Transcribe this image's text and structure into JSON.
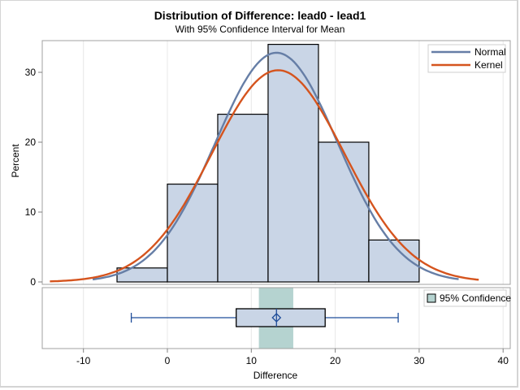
{
  "chart_data": {
    "type": "bar",
    "title": "Distribution of Difference: lead0 - lead1",
    "subtitle": "With 95% Confidence Interval for Mean",
    "xlabel": "Difference",
    "ylabel": "Percent",
    "xlim": [
      -15,
      41
    ],
    "ylim": [
      0,
      35.5
    ],
    "xticks": [
      -10,
      0,
      10,
      20,
      30,
      40
    ],
    "yticks": [
      0,
      10,
      20,
      30
    ],
    "grid": "vertical",
    "histogram": {
      "bins": [
        {
          "lo": -6,
          "hi": 0,
          "value": 2
        },
        {
          "lo": 0,
          "hi": 6,
          "value": 14
        },
        {
          "lo": 6,
          "hi": 12,
          "value": 24
        },
        {
          "lo": 12,
          "hi": 18,
          "value": 34
        },
        {
          "lo": 18,
          "hi": 24,
          "value": 20
        },
        {
          "lo": 24,
          "hi": 30,
          "value": 6
        }
      ]
    },
    "series": [
      {
        "name": "Normal",
        "color": "#667ea6",
        "mean": 13,
        "peak": 32.8,
        "range": [
          -8.9,
          34.7
        ]
      },
      {
        "name": "Kernel",
        "color": "#d5541e",
        "mean": 13.2,
        "peak": 30.3,
        "range": [
          -14,
          37.1
        ]
      }
    ],
    "legend": {
      "position": "top-right",
      "entries": [
        "Normal",
        "Kernel"
      ]
    },
    "boxplot": {
      "whisker_low": -4.3,
      "q1": 8.2,
      "median": 13,
      "mean": 13,
      "q3": 18.8,
      "whisker_high": 27.5,
      "ci_low": 10.9,
      "ci_high": 15.0,
      "ci_label": "95% Confidence",
      "ci_color": "#b5d3d0",
      "box_color": "#c9d5e6"
    }
  }
}
